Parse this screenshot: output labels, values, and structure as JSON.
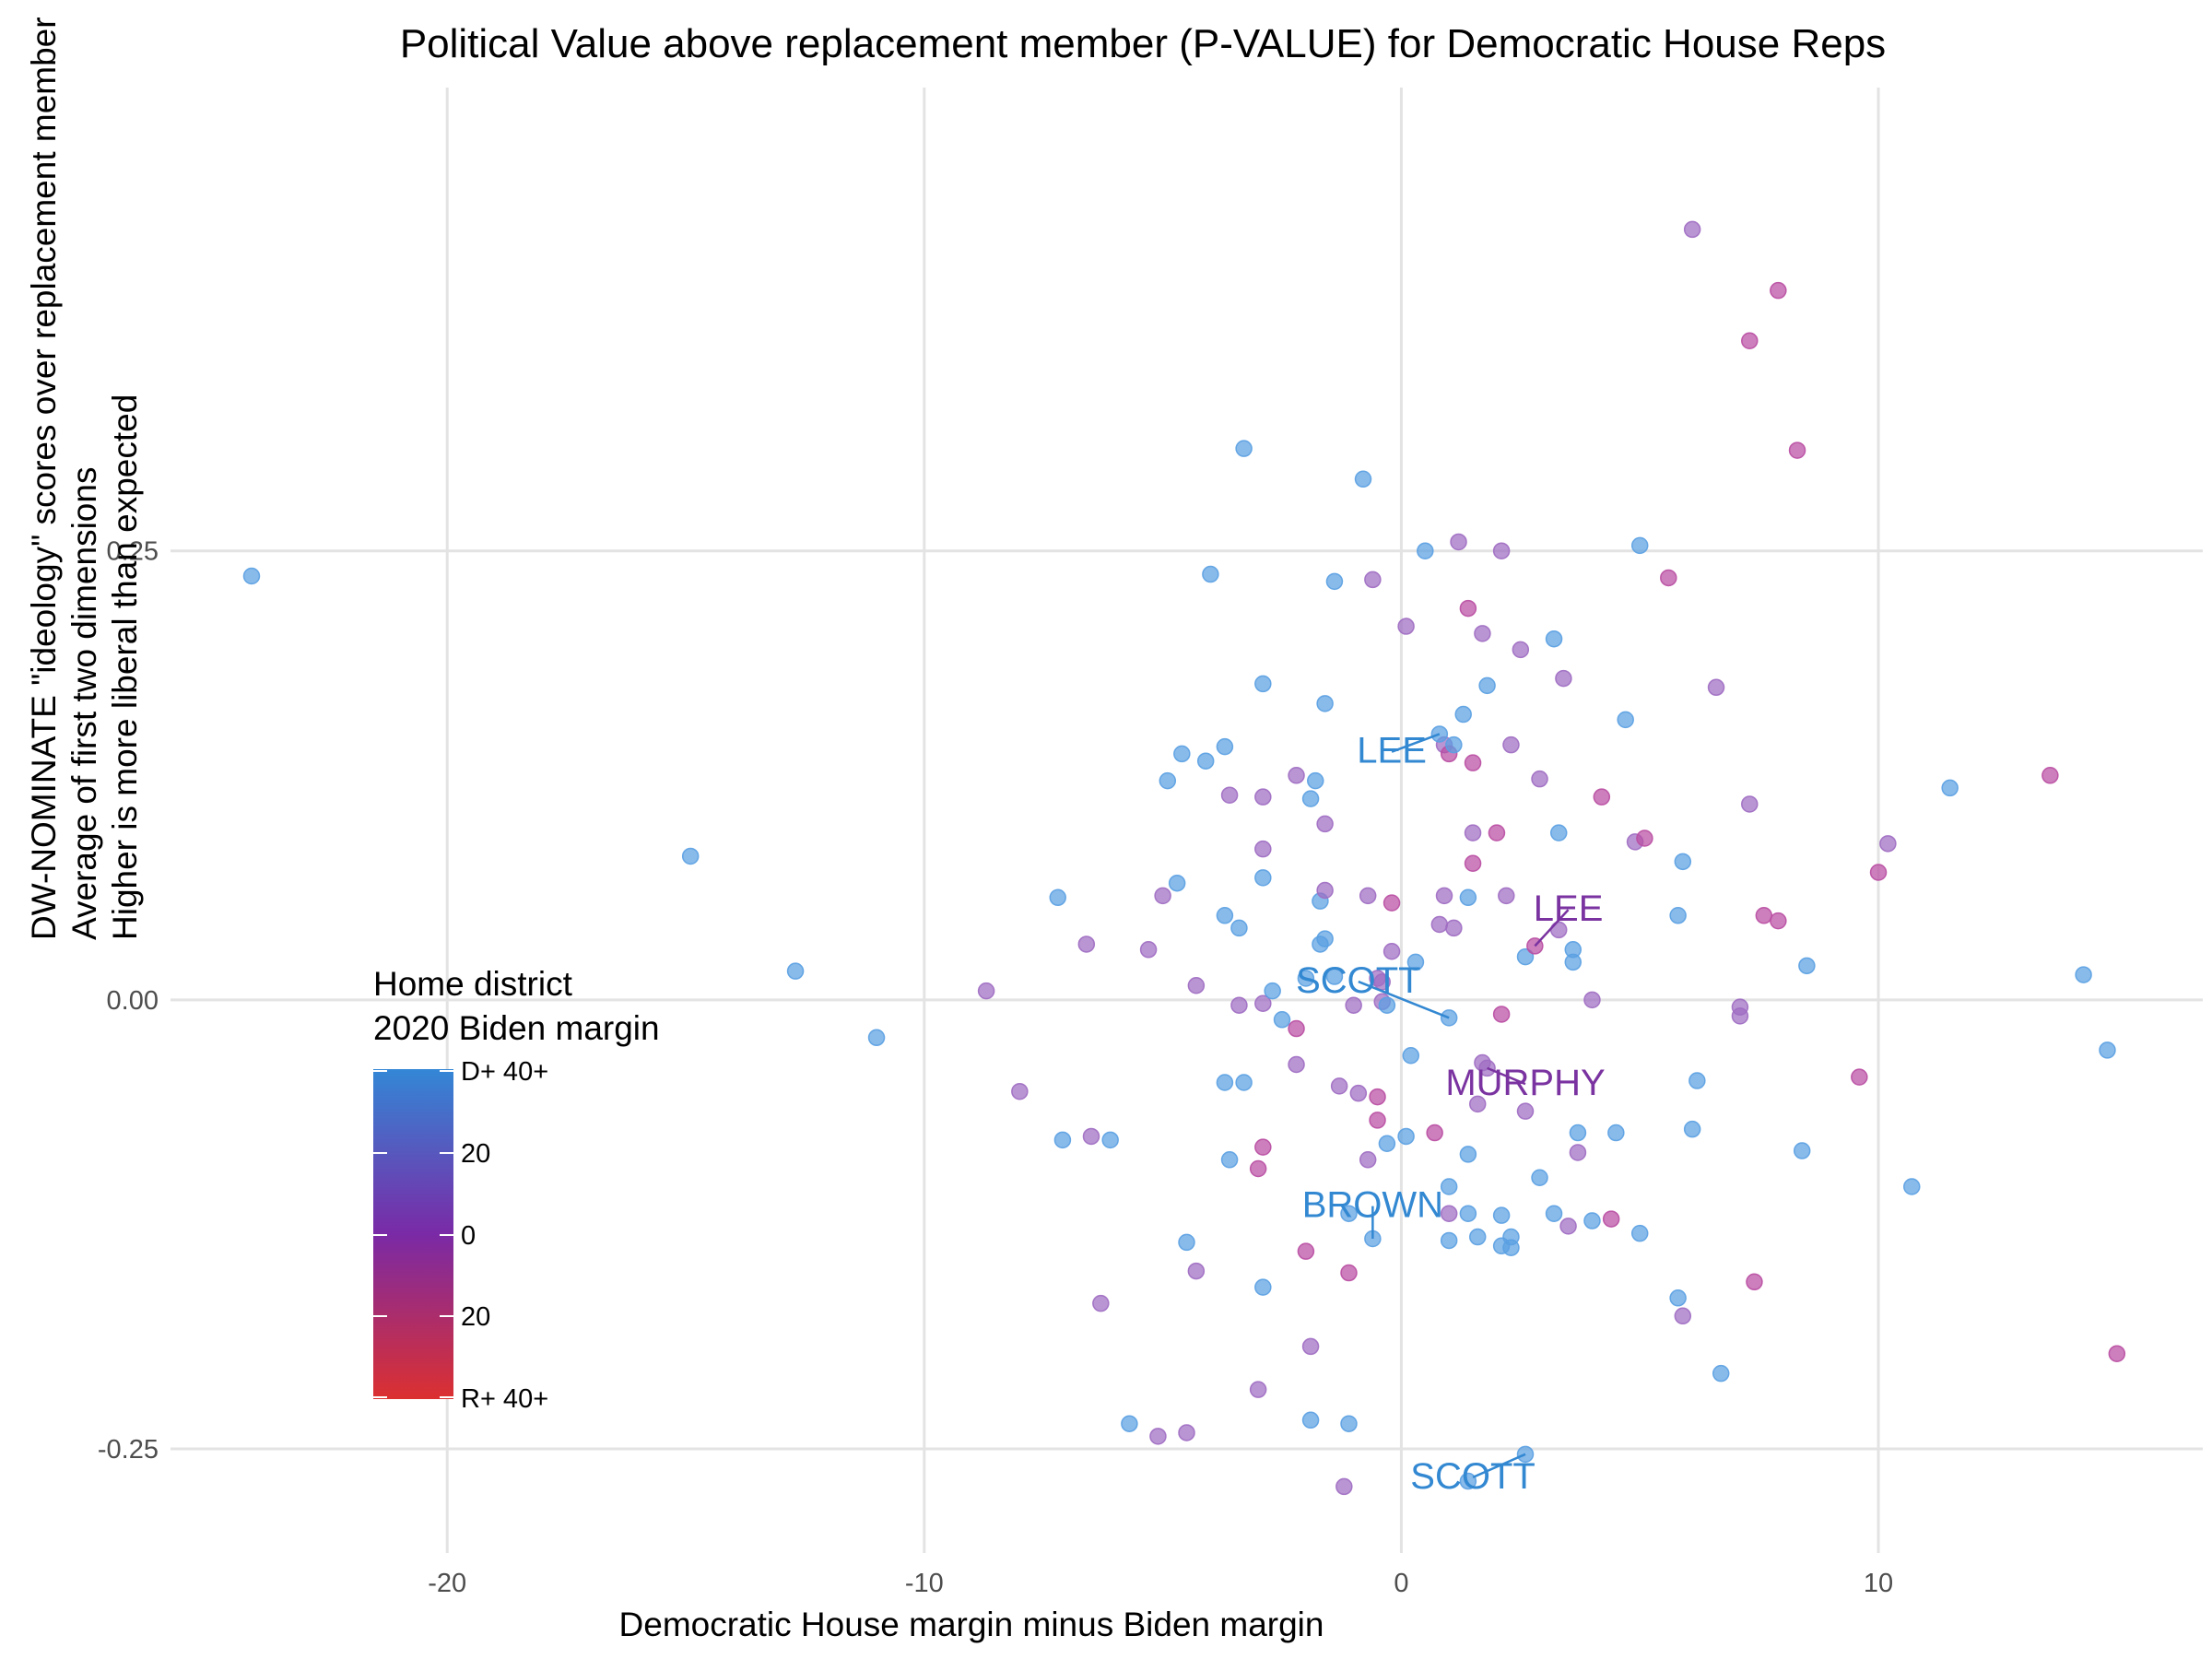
{
  "chart_data": {
    "type": "scatter",
    "title": "Political Value above replacement member (P-VALUE) for Democratic House Reps",
    "xlabel": "Democratic House margin minus Biden margin",
    "ylabel_lines": [
      "DW-NOMINATE \"ideology\" scores over replacement member",
      "Average of first two dimensions",
      "Higher is more liberal than expected"
    ],
    "xlim": [
      -25.8,
      16.8
    ],
    "ylim": [
      -0.308,
      0.508
    ],
    "x_ticks": [
      -20,
      -10,
      0,
      10
    ],
    "x_tick_labels": [
      "-20",
      "-10",
      "0",
      "10"
    ],
    "y_ticks": [
      -0.25,
      0,
      0.25
    ],
    "y_tick_labels": [
      "-0.25",
      "0.00",
      "0.25"
    ],
    "grid": true,
    "legend": {
      "placement": "bottom-left",
      "title_lines": [
        "Home district",
        "2020 Biden margin"
      ],
      "labels": [
        "D+ 40+",
        "20",
        "0",
        "20",
        "R+ 40+"
      ],
      "colors": [
        "#3387d6",
        "#7a2aa6",
        "#dc3030"
      ]
    },
    "colors": {
      "blue": "#5aa0e2",
      "purple": "#9e6cc2",
      "magenta": "#b94da2",
      "label_blue": "#3388d2",
      "label_purple": "#7a33a0"
    },
    "points": [
      {
        "x": -24.1,
        "y": 0.236,
        "c": "blue"
      },
      {
        "x": -14.9,
        "y": 0.08,
        "c": "blue"
      },
      {
        "x": -12.7,
        "y": 0.016,
        "c": "blue"
      },
      {
        "x": -11.0,
        "y": -0.021,
        "c": "blue"
      },
      {
        "x": -8.7,
        "y": 0.005,
        "c": "purple"
      },
      {
        "x": -8.0,
        "y": -0.051,
        "c": "purple"
      },
      {
        "x": -7.2,
        "y": 0.057,
        "c": "blue"
      },
      {
        "x": -7.1,
        "y": -0.078,
        "c": "blue"
      },
      {
        "x": -6.6,
        "y": 0.031,
        "c": "purple"
      },
      {
        "x": -6.5,
        "y": -0.076,
        "c": "purple"
      },
      {
        "x": -6.3,
        "y": -0.169,
        "c": "purple"
      },
      {
        "x": -6.1,
        "y": -0.078,
        "c": "blue"
      },
      {
        "x": -5.7,
        "y": -0.236,
        "c": "blue"
      },
      {
        "x": -5.3,
        "y": 0.028,
        "c": "purple"
      },
      {
        "x": -5.1,
        "y": -0.243,
        "c": "purple"
      },
      {
        "x": -5.0,
        "y": 0.058,
        "c": "purple"
      },
      {
        "x": -4.9,
        "y": 0.122,
        "c": "blue"
      },
      {
        "x": -4.7,
        "y": 0.065,
        "c": "blue"
      },
      {
        "x": -4.6,
        "y": 0.137,
        "c": "blue"
      },
      {
        "x": -4.5,
        "y": -0.135,
        "c": "blue"
      },
      {
        "x": -4.5,
        "y": -0.241,
        "c": "purple"
      },
      {
        "x": -4.3,
        "y": 0.008,
        "c": "purple"
      },
      {
        "x": -4.3,
        "y": -0.151,
        "c": "purple"
      },
      {
        "x": -4.1,
        "y": 0.133,
        "c": "blue"
      },
      {
        "x": -4.0,
        "y": 0.237,
        "c": "blue"
      },
      {
        "x": -3.7,
        "y": 0.141,
        "c": "blue"
      },
      {
        "x": -3.7,
        "y": 0.047,
        "c": "blue"
      },
      {
        "x": -3.7,
        "y": -0.046,
        "c": "blue"
      },
      {
        "x": -3.6,
        "y": 0.114,
        "c": "purple"
      },
      {
        "x": -3.6,
        "y": -0.089,
        "c": "blue"
      },
      {
        "x": -3.4,
        "y": 0.04,
        "c": "blue"
      },
      {
        "x": -3.4,
        "y": -0.003,
        "c": "purple"
      },
      {
        "x": -3.3,
        "y": 0.307,
        "c": "blue"
      },
      {
        "x": -3.3,
        "y": -0.046,
        "c": "blue"
      },
      {
        "x": -2.9,
        "y": 0.176,
        "c": "blue"
      },
      {
        "x": -2.9,
        "y": 0.113,
        "c": "purple"
      },
      {
        "x": -2.9,
        "y": 0.084,
        "c": "purple"
      },
      {
        "x": -2.9,
        "y": 0.068,
        "c": "blue"
      },
      {
        "x": -2.9,
        "y": -0.002,
        "c": "purple"
      },
      {
        "x": -2.9,
        "y": -0.082,
        "c": "magenta"
      },
      {
        "x": -3.0,
        "y": -0.094,
        "c": "magenta"
      },
      {
        "x": -2.9,
        "y": -0.16,
        "c": "blue"
      },
      {
        "x": -3.0,
        "y": -0.217,
        "c": "purple"
      },
      {
        "x": -2.7,
        "y": 0.005,
        "c": "blue"
      },
      {
        "x": -2.5,
        "y": -0.011,
        "c": "blue"
      },
      {
        "x": -2.2,
        "y": 0.125,
        "c": "purple"
      },
      {
        "x": -2.2,
        "y": -0.016,
        "c": "magenta"
      },
      {
        "x": -2.2,
        "y": -0.036,
        "c": "purple"
      },
      {
        "x": -2.0,
        "y": 0.012,
        "c": "blue"
      },
      {
        "x": -2.0,
        "y": -0.14,
        "c": "magenta"
      },
      {
        "x": -1.9,
        "y": 0.112,
        "c": "blue"
      },
      {
        "x": -1.8,
        "y": 0.122,
        "c": "blue"
      },
      {
        "x": -1.9,
        "y": -0.193,
        "c": "purple"
      },
      {
        "x": -1.9,
        "y": -0.234,
        "c": "blue"
      },
      {
        "x": -1.7,
        "y": 0.055,
        "c": "blue"
      },
      {
        "x": -1.7,
        "y": 0.031,
        "c": "blue"
      },
      {
        "x": -1.6,
        "y": 0.165,
        "c": "blue"
      },
      {
        "x": -1.6,
        "y": 0.098,
        "c": "purple"
      },
      {
        "x": -1.6,
        "y": 0.061,
        "c": "purple"
      },
      {
        "x": -1.6,
        "y": 0.034,
        "c": "blue"
      },
      {
        "x": -1.4,
        "y": 0.233,
        "c": "blue"
      },
      {
        "x": -1.4,
        "y": 0.013,
        "c": "blue"
      },
      {
        "x": -1.3,
        "y": -0.048,
        "c": "purple"
      },
      {
        "x": -1.1,
        "y": -0.119,
        "c": "blue"
      },
      {
        "x": -1.2,
        "y": -0.271,
        "c": "purple"
      },
      {
        "x": -1.1,
        "y": -0.236,
        "c": "blue"
      },
      {
        "x": -1.1,
        "y": -0.152,
        "c": "magenta"
      },
      {
        "x": -1.0,
        "y": -0.003,
        "c": "purple"
      },
      {
        "x": -0.9,
        "y": -0.052,
        "c": "purple"
      },
      {
        "x": -0.8,
        "y": 0.29,
        "c": "blue"
      },
      {
        "x": -0.7,
        "y": 0.058,
        "c": "purple"
      },
      {
        "x": -0.7,
        "y": -0.089,
        "c": "purple"
      },
      {
        "x": -0.6,
        "y": 0.234,
        "c": "purple"
      },
      {
        "x": -0.5,
        "y": 0.012,
        "c": "purple"
      },
      {
        "x": -0.5,
        "y": -0.054,
        "c": "magenta"
      },
      {
        "x": -0.5,
        "y": -0.067,
        "c": "magenta"
      },
      {
        "x": -0.4,
        "y": 0.01,
        "c": "purple"
      },
      {
        "x": -0.4,
        "y": -0.001,
        "c": "purple"
      },
      {
        "x": -0.3,
        "y": -0.003,
        "c": "blue"
      },
      {
        "x": -0.3,
        "y": -0.08,
        "c": "blue"
      },
      {
        "x": -0.2,
        "y": 0.054,
        "c": "magenta"
      },
      {
        "x": -0.2,
        "y": 0.027,
        "c": "purple"
      },
      {
        "x": 0.1,
        "y": 0.208,
        "c": "purple"
      },
      {
        "x": 0.1,
        "y": -0.076,
        "c": "blue"
      },
      {
        "x": 0.2,
        "y": -0.031,
        "c": "blue"
      },
      {
        "x": 0.3,
        "y": 0.021,
        "c": "blue"
      },
      {
        "x": 0.5,
        "y": 0.25,
        "c": "blue"
      },
      {
        "x": 0.7,
        "y": -0.074,
        "c": "magenta"
      },
      {
        "x": 0.8,
        "y": 0.042,
        "c": "purple"
      },
      {
        "x": 0.9,
        "y": 0.058,
        "c": "purple"
      },
      {
        "x": 1.0,
        "y": -0.01,
        "c": "blue"
      },
      {
        "x": 1.0,
        "y": -0.104,
        "c": "blue"
      },
      {
        "x": 1.0,
        "y": -0.119,
        "c": "purple"
      },
      {
        "x": 1.0,
        "y": -0.134,
        "c": "blue"
      },
      {
        "x": 1.1,
        "y": 0.04,
        "c": "purple"
      },
      {
        "x": 1.2,
        "y": 0.255,
        "c": "purple"
      },
      {
        "x": 1.3,
        "y": 0.159,
        "c": "blue"
      },
      {
        "x": 1.4,
        "y": 0.218,
        "c": "magenta"
      },
      {
        "x": 1.4,
        "y": 0.057,
        "c": "blue"
      },
      {
        "x": 1.4,
        "y": -0.086,
        "c": "blue"
      },
      {
        "x": 1.4,
        "y": -0.119,
        "c": "blue"
      },
      {
        "x": 1.5,
        "y": 0.132,
        "c": "magenta"
      },
      {
        "x": 1.5,
        "y": 0.093,
        "c": "purple"
      },
      {
        "x": 1.5,
        "y": 0.076,
        "c": "magenta"
      },
      {
        "x": 1.6,
        "y": -0.058,
        "c": "purple"
      },
      {
        "x": 1.6,
        "y": -0.132,
        "c": "blue"
      },
      {
        "x": 1.4,
        "y": -0.268,
        "c": "blue"
      },
      {
        "x": 1.7,
        "y": 0.204,
        "c": "purple"
      },
      {
        "x": 1.8,
        "y": 0.175,
        "c": "blue"
      },
      {
        "x": 2.0,
        "y": 0.093,
        "c": "magenta"
      },
      {
        "x": 2.1,
        "y": -0.008,
        "c": "magenta"
      },
      {
        "x": 2.1,
        "y": 0.25,
        "c": "purple"
      },
      {
        "x": 2.1,
        "y": -0.12,
        "c": "blue"
      },
      {
        "x": 2.1,
        "y": -0.137,
        "c": "blue"
      },
      {
        "x": 2.2,
        "y": 0.058,
        "c": "purple"
      },
      {
        "x": 2.3,
        "y": 0.142,
        "c": "purple"
      },
      {
        "x": 2.3,
        "y": -0.132,
        "c": "blue"
      },
      {
        "x": 2.3,
        "y": -0.138,
        "c": "blue"
      },
      {
        "x": 2.5,
        "y": 0.195,
        "c": "purple"
      },
      {
        "x": 2.6,
        "y": 0.024,
        "c": "blue"
      },
      {
        "x": 2.6,
        "y": -0.062,
        "c": "purple"
      },
      {
        "x": 2.6,
        "y": -0.253,
        "c": "blue"
      },
      {
        "x": 2.9,
        "y": 0.123,
        "c": "purple"
      },
      {
        "x": 2.9,
        "y": -0.099,
        "c": "blue"
      },
      {
        "x": 3.2,
        "y": 0.201,
        "c": "blue"
      },
      {
        "x": 3.3,
        "y": 0.093,
        "c": "blue"
      },
      {
        "x": 3.2,
        "y": -0.119,
        "c": "blue"
      },
      {
        "x": 3.4,
        "y": 0.179,
        "c": "purple"
      },
      {
        "x": 3.5,
        "y": -0.126,
        "c": "purple"
      },
      {
        "x": 3.6,
        "y": 0.028,
        "c": "blue"
      },
      {
        "x": 3.6,
        "y": 0.021,
        "c": "blue"
      },
      {
        "x": 3.7,
        "y": -0.074,
        "c": "blue"
      },
      {
        "x": 3.7,
        "y": -0.085,
        "c": "purple"
      },
      {
        "x": 4.0,
        "y": 0.0,
        "c": "purple"
      },
      {
        "x": 4.0,
        "y": -0.123,
        "c": "blue"
      },
      {
        "x": 4.2,
        "y": 0.113,
        "c": "magenta"
      },
      {
        "x": 4.4,
        "y": -0.122,
        "c": "magenta"
      },
      {
        "x": 4.5,
        "y": -0.074,
        "c": "blue"
      },
      {
        "x": 4.7,
        "y": 0.156,
        "c": "blue"
      },
      {
        "x": 4.9,
        "y": 0.088,
        "c": "purple"
      },
      {
        "x": 5.0,
        "y": 0.253,
        "c": "blue"
      },
      {
        "x": 5.0,
        "y": -0.13,
        "c": "blue"
      },
      {
        "x": 5.1,
        "y": 0.09,
        "c": "magenta"
      },
      {
        "x": 5.6,
        "y": 0.235,
        "c": "magenta"
      },
      {
        "x": 5.8,
        "y": 0.047,
        "c": "blue"
      },
      {
        "x": 5.8,
        "y": -0.166,
        "c": "blue"
      },
      {
        "x": 5.9,
        "y": 0.077,
        "c": "blue"
      },
      {
        "x": 5.9,
        "y": -0.176,
        "c": "purple"
      },
      {
        "x": 6.1,
        "y": 0.429,
        "c": "purple"
      },
      {
        "x": 6.1,
        "y": -0.072,
        "c": "blue"
      },
      {
        "x": 6.2,
        "y": -0.045,
        "c": "blue"
      },
      {
        "x": 6.6,
        "y": 0.174,
        "c": "purple"
      },
      {
        "x": 6.7,
        "y": -0.208,
        "c": "blue"
      },
      {
        "x": 7.1,
        "y": -0.004,
        "c": "purple"
      },
      {
        "x": 7.1,
        "y": -0.009,
        "c": "purple"
      },
      {
        "x": 7.3,
        "y": 0.109,
        "c": "purple"
      },
      {
        "x": 7.3,
        "y": 0.367,
        "c": "magenta"
      },
      {
        "x": 7.4,
        "y": -0.157,
        "c": "magenta"
      },
      {
        "x": 7.6,
        "y": 0.047,
        "c": "magenta"
      },
      {
        "x": 7.9,
        "y": 0.044,
        "c": "magenta"
      },
      {
        "x": 7.9,
        "y": 0.395,
        "c": "magenta"
      },
      {
        "x": 8.3,
        "y": 0.306,
        "c": "magenta"
      },
      {
        "x": 8.4,
        "y": -0.084,
        "c": "blue"
      },
      {
        "x": 8.5,
        "y": 0.019,
        "c": "blue"
      },
      {
        "x": 9.6,
        "y": -0.043,
        "c": "magenta"
      },
      {
        "x": 10.0,
        "y": 0.071,
        "c": "magenta"
      },
      {
        "x": 10.2,
        "y": 0.087,
        "c": "purple"
      },
      {
        "x": 10.7,
        "y": -0.104,
        "c": "blue"
      },
      {
        "x": 11.5,
        "y": 0.118,
        "c": "blue"
      },
      {
        "x": 13.6,
        "y": 0.125,
        "c": "magenta"
      },
      {
        "x": 14.3,
        "y": 0.014,
        "c": "blue"
      },
      {
        "x": 14.8,
        "y": -0.028,
        "c": "blue"
      },
      {
        "x": 15.0,
        "y": -0.197,
        "c": "magenta"
      },
      {
        "x": 0.9,
        "y": 0.142,
        "c": "purple"
      },
      {
        "x": 1.0,
        "y": 0.137,
        "c": "magenta"
      },
      {
        "x": 1.1,
        "y": 0.142,
        "c": "blue"
      },
      {
        "x": 0.8,
        "y": 0.148,
        "c": "blue"
      },
      {
        "x": 3.3,
        "y": 0.039,
        "c": "purple"
      },
      {
        "x": 2.8,
        "y": 0.03,
        "c": "magenta"
      },
      {
        "x": 1.7,
        "y": -0.035,
        "c": "purple"
      },
      {
        "x": 1.8,
        "y": -0.038,
        "c": "purple"
      },
      {
        "x": -0.6,
        "y": -0.133,
        "c": "blue"
      }
    ],
    "labels": [
      {
        "text": "LEE",
        "x": -0.2,
        "y": 0.132,
        "c": "label_blue",
        "px": 0.8,
        "py": 0.148
      },
      {
        "text": "LEE",
        "x": 3.5,
        "y": 0.044,
        "c": "label_purple",
        "px": 2.8,
        "py": 0.03
      },
      {
        "text": "SCOTT",
        "x": -0.9,
        "y": 0.004,
        "c": "label_blue",
        "px": 1.0,
        "py": -0.01
      },
      {
        "text": "MURPHY",
        "x": 2.6,
        "y": -0.053,
        "c": "label_purple",
        "px": 1.8,
        "py": -0.038
      },
      {
        "text": "BROWN",
        "x": -0.6,
        "y": -0.121,
        "c": "label_blue",
        "px": -0.6,
        "py": -0.133
      },
      {
        "text": "SCOTT",
        "x": 1.5,
        "y": -0.272,
        "c": "label_blue",
        "px": 2.6,
        "py": -0.253
      }
    ]
  }
}
